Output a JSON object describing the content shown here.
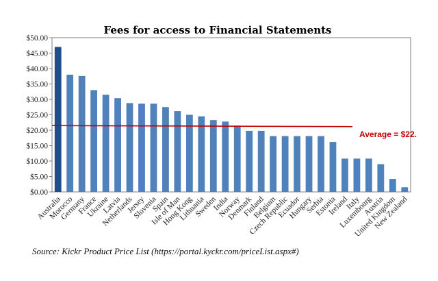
{
  "chart_data": {
    "type": "bar",
    "title": "Fees for access to Financial Statements",
    "xlabel": "",
    "ylabel": "",
    "ylim": [
      0,
      50
    ],
    "yticks": [
      "$0.00",
      "$5.00",
      "$10.00",
      "$15.00",
      "$20.00",
      "$25.00",
      "$30.00",
      "$35.00",
      "$40.00",
      "$45.00",
      "$50.00"
    ],
    "grid": false,
    "categories": [
      "Australia",
      "Morocco",
      "Germany",
      "France",
      "Ukraine",
      "Latvia",
      "Netherlands",
      "Jersey",
      "Slovenia",
      "Spain",
      "Isle of Man",
      "Hong Kong",
      "Lithuania",
      "Sweden",
      "India",
      "Norway",
      "Denmark",
      "Finland",
      "Belgium",
      "Czech Republic",
      "Ecuador",
      "Hungary",
      "Serbia",
      "Estonia",
      "Ireland",
      "Italy",
      "Luxembourg",
      "Austria",
      "United Kingdom",
      "New Zealand"
    ],
    "values": [
      47.0,
      38.0,
      37.6,
      33.0,
      31.5,
      30.4,
      28.8,
      28.6,
      28.6,
      27.5,
      26.2,
      25.0,
      24.5,
      23.3,
      22.8,
      21.5,
      19.8,
      19.8,
      18.1,
      18.1,
      18.1,
      18.1,
      18.1,
      16.2,
      10.8,
      10.8,
      10.8,
      9.0,
      4.2,
      1.5
    ],
    "highlight_index": 0,
    "colors": {
      "bar": "#4f81bd",
      "highlight": "#1f4e8c",
      "average_line": "#c00000",
      "axis": "#555555"
    },
    "average": {
      "value": 21.5,
      "label": "Average = $22."
    }
  },
  "source": "Source: Kickr Product Price List (https://portal.kyckr.com/priceList.aspx#)"
}
